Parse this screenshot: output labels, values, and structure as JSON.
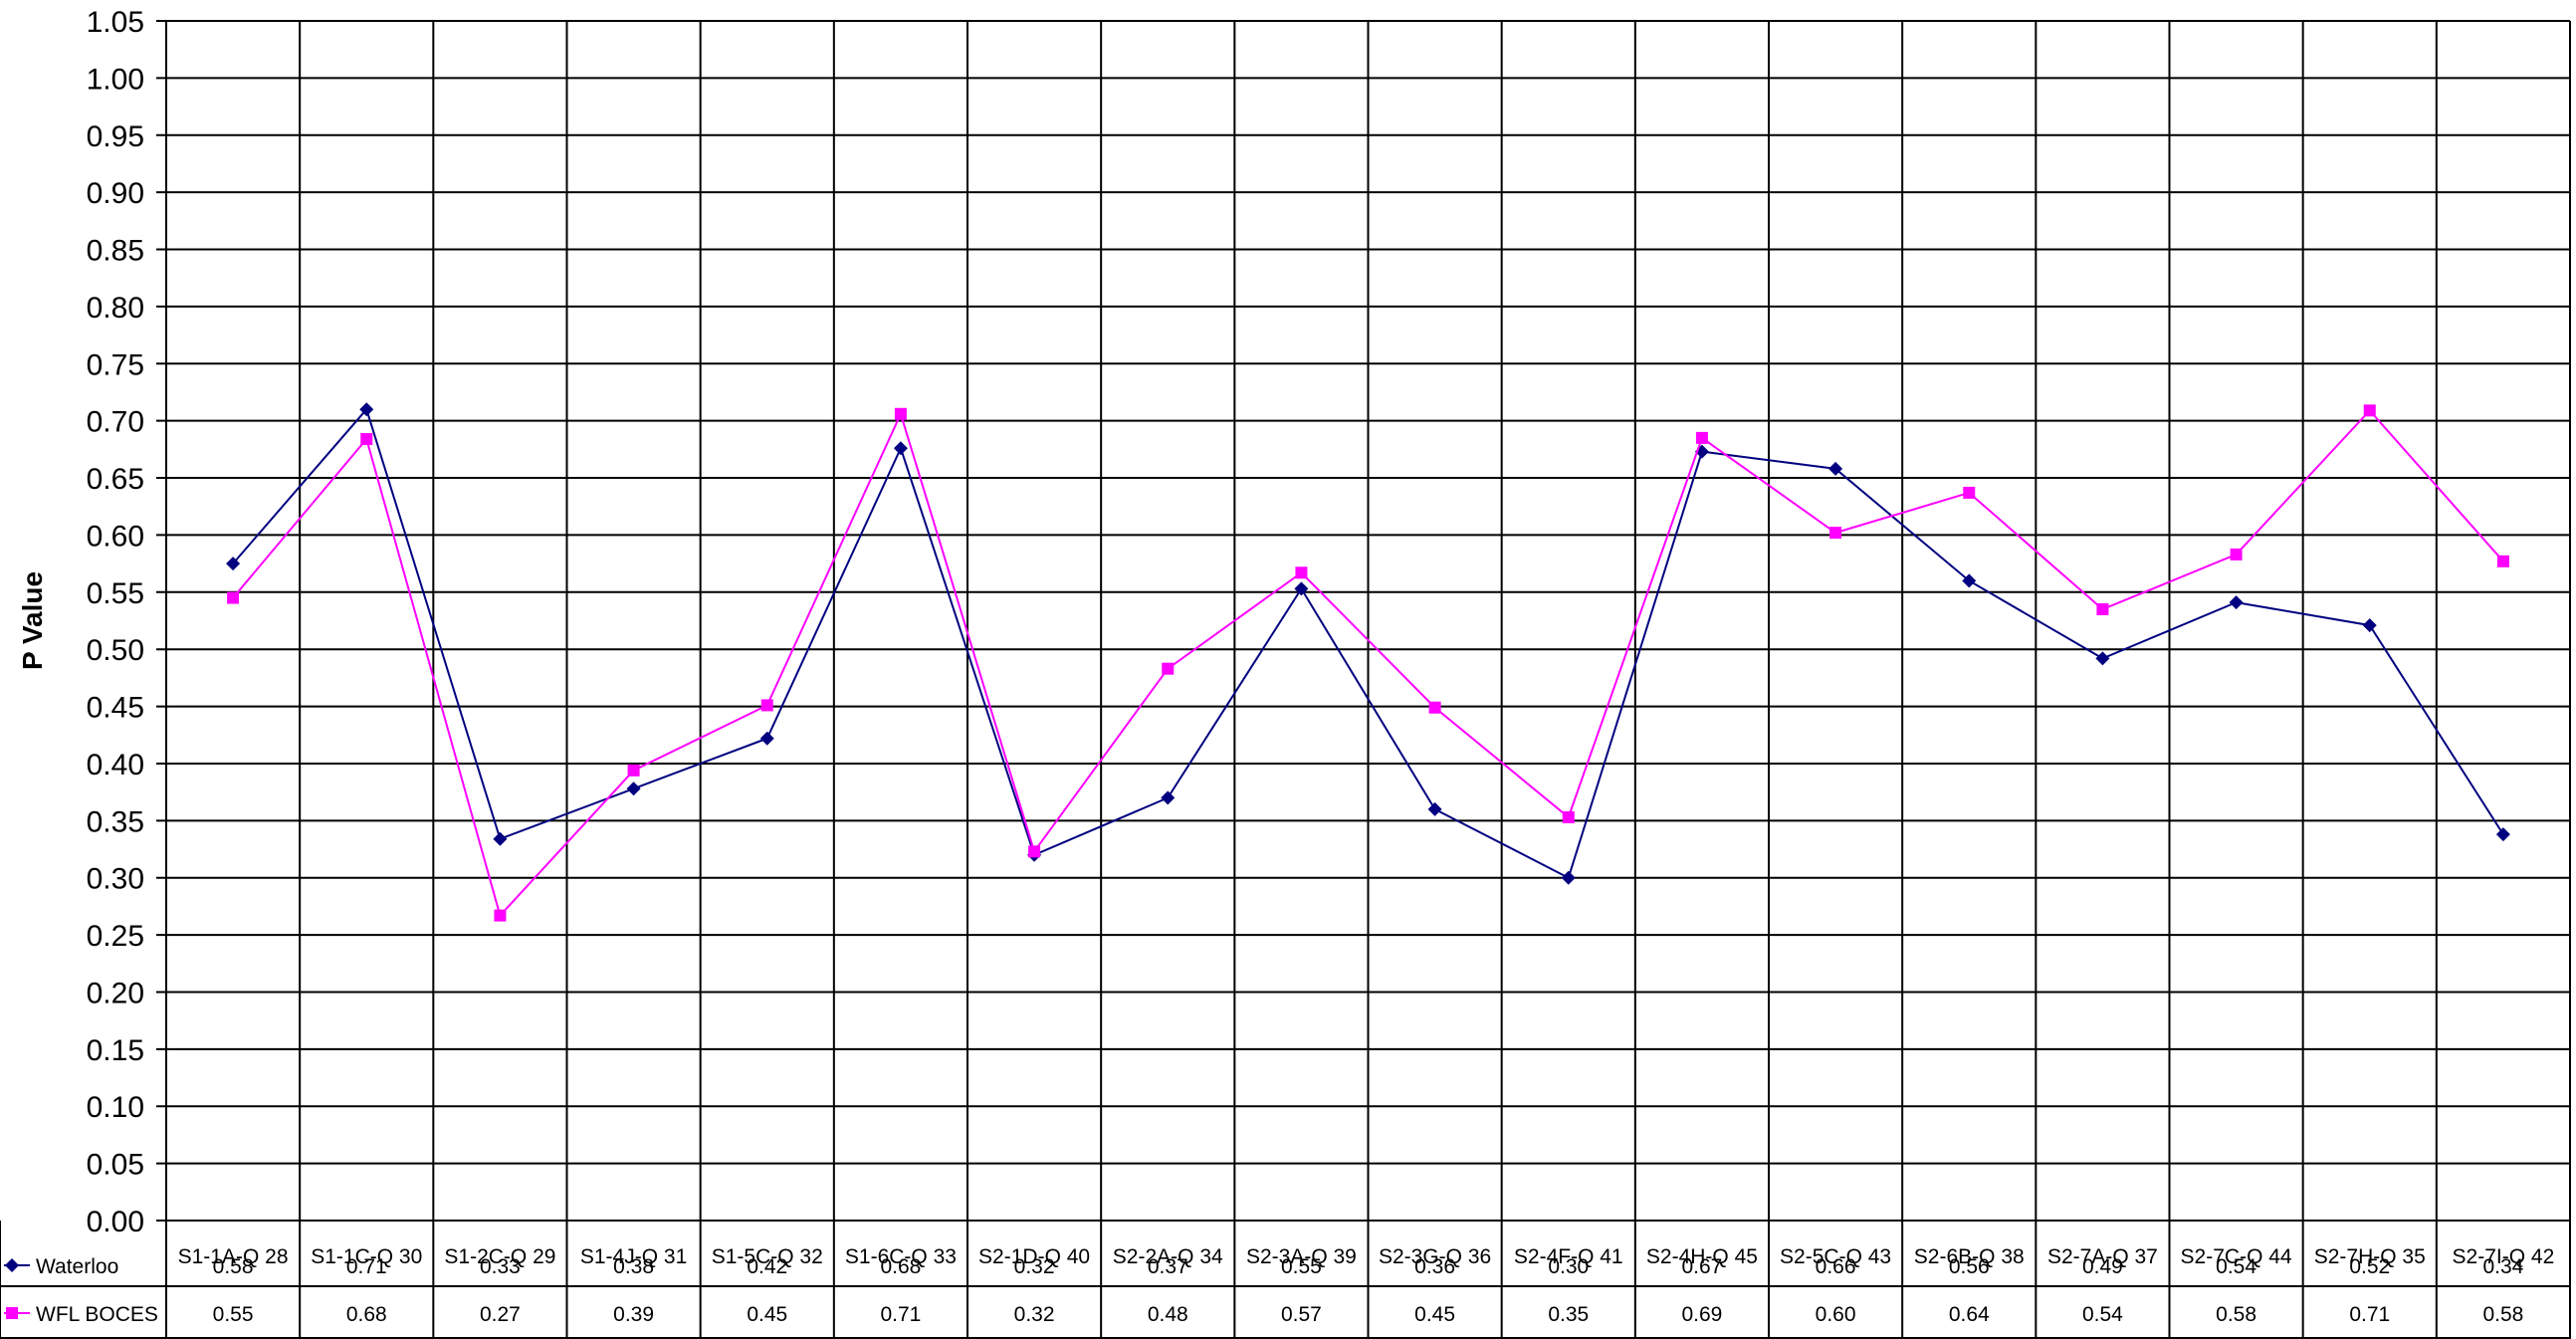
{
  "chart_data": {
    "type": "line",
    "ylabel": "P Value",
    "xlabel": "",
    "ylim": [
      0,
      1.05
    ],
    "ytick_step": 0.05,
    "grid": true,
    "legend_placement": "data-table-left",
    "categories": [
      "S1-1A-Q 28",
      "S1-1C-Q 30",
      "S1-2C-Q 29",
      "S1-4J-Q 31",
      "S1-5C-Q 32",
      "S1-6C-Q 33",
      "S2-1D-Q 40",
      "S2-2A-Q 34",
      "S2-3A-Q 39",
      "S2-3G-Q 36",
      "S2-4F-Q 41",
      "S2-4H-Q 45",
      "S2-5C-Q 43",
      "S2-6B-Q 38",
      "S2-7A-Q 37",
      "S2-7C-Q 44",
      "S2-7H-Q 35",
      "S2-7I-Q 42"
    ],
    "series": [
      {
        "name": "Waterloo",
        "color": "#000080",
        "marker": "diamond",
        "values": [
          0.575,
          0.71,
          0.334,
          0.378,
          0.422,
          0.676,
          0.32,
          0.37,
          0.553,
          0.36,
          0.3,
          0.673,
          0.658,
          0.56,
          0.492,
          0.541,
          0.521,
          0.338
        ],
        "labels": [
          "0.58",
          "0.71",
          "0.33",
          "0.38",
          "0.42",
          "0.68",
          "0.32",
          "0.37",
          "0.55",
          "0.36",
          "0.30",
          "0.67",
          "0.66",
          "0.56",
          "0.49",
          "0.54",
          "0.52",
          "0.34"
        ]
      },
      {
        "name": "WFL BOCES",
        "color": "#FF00FF",
        "marker": "square",
        "values": [
          0.545,
          0.684,
          0.267,
          0.394,
          0.451,
          0.706,
          0.323,
          0.483,
          0.567,
          0.449,
          0.353,
          0.685,
          0.602,
          0.637,
          0.535,
          0.583,
          0.709,
          0.577
        ],
        "labels": [
          "0.55",
          "0.68",
          "0.27",
          "0.39",
          "0.45",
          "0.71",
          "0.32",
          "0.48",
          "0.57",
          "0.45",
          "0.35",
          "0.69",
          "0.60",
          "0.64",
          "0.54",
          "0.58",
          "0.71",
          "0.58"
        ]
      }
    ]
  }
}
